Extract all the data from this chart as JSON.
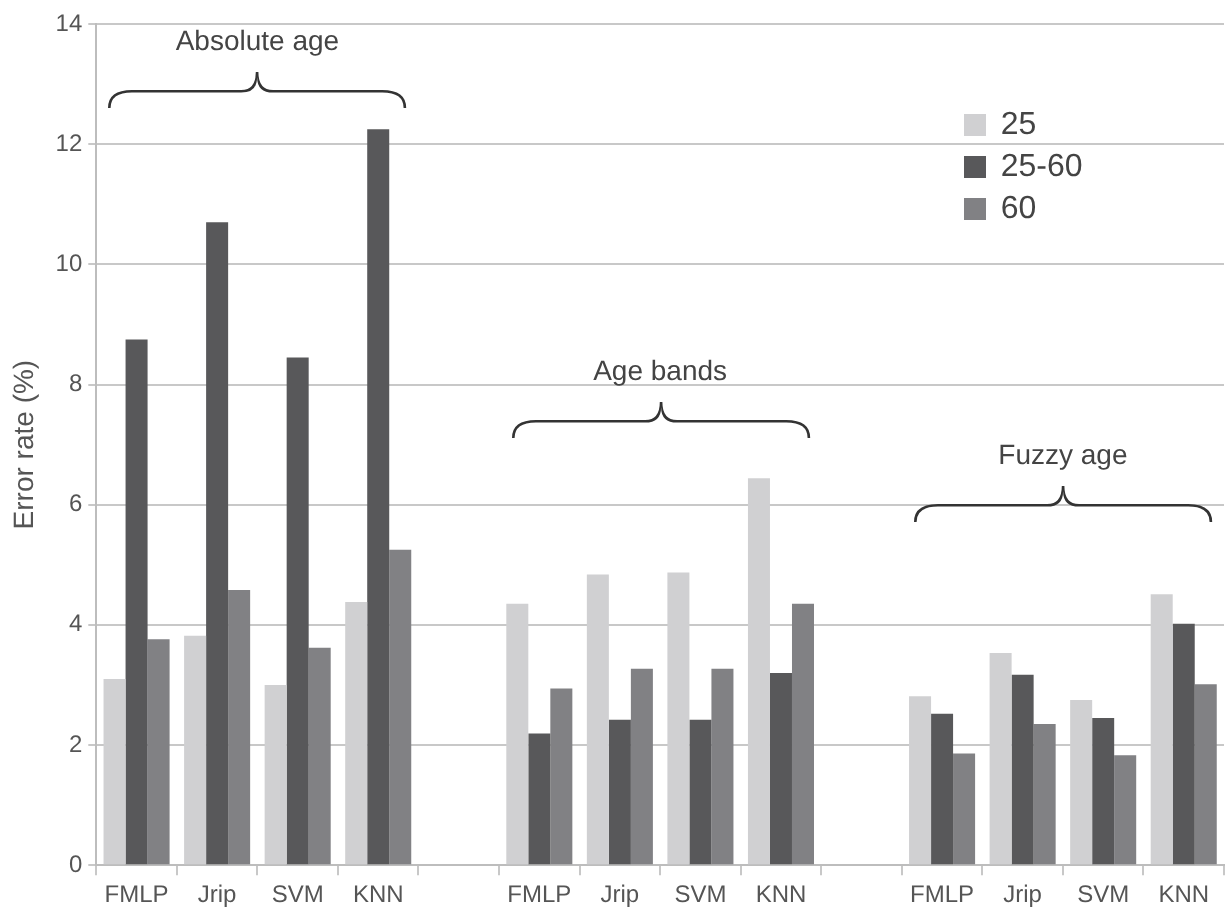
{
  "chart_data": {
    "type": "bar",
    "ylabel": "Error rate (%)",
    "categories": [
      "FMLP",
      "Jrip",
      "SVM",
      "KNN",
      null,
      "FMLP",
      "Jrip",
      "SVM",
      "KNN",
      null,
      "FMLP",
      "Jrip",
      "SVM",
      "KNN"
    ],
    "series": [
      {
        "name": "25",
        "color": "#d0d0d2",
        "values": [
          3.1,
          3.82,
          3.0,
          4.38,
          null,
          4.35,
          4.84,
          4.87,
          6.44,
          null,
          2.81,
          3.53,
          2.75,
          4.51
        ]
      },
      {
        "name": "25-60",
        "color": "#58585a",
        "values": [
          8.75,
          10.7,
          8.45,
          12.25,
          null,
          2.19,
          2.42,
          2.42,
          3.2,
          null,
          2.52,
          3.17,
          2.45,
          4.02
        ]
      },
      {
        "name": "60",
        "color": "#818184",
        "values": [
          3.76,
          4.58,
          3.62,
          5.25,
          null,
          2.94,
          3.27,
          3.27,
          4.35,
          null,
          1.86,
          2.35,
          1.83,
          3.01
        ]
      }
    ],
    "ylim": [
      0,
      14
    ],
    "yticks": [
      0,
      2,
      4,
      6,
      8,
      10,
      12,
      14
    ],
    "grid": "y",
    "legend": "top right",
    "annotations": [
      "Absolute age",
      "Age bands",
      "Fuzzy age"
    ]
  }
}
